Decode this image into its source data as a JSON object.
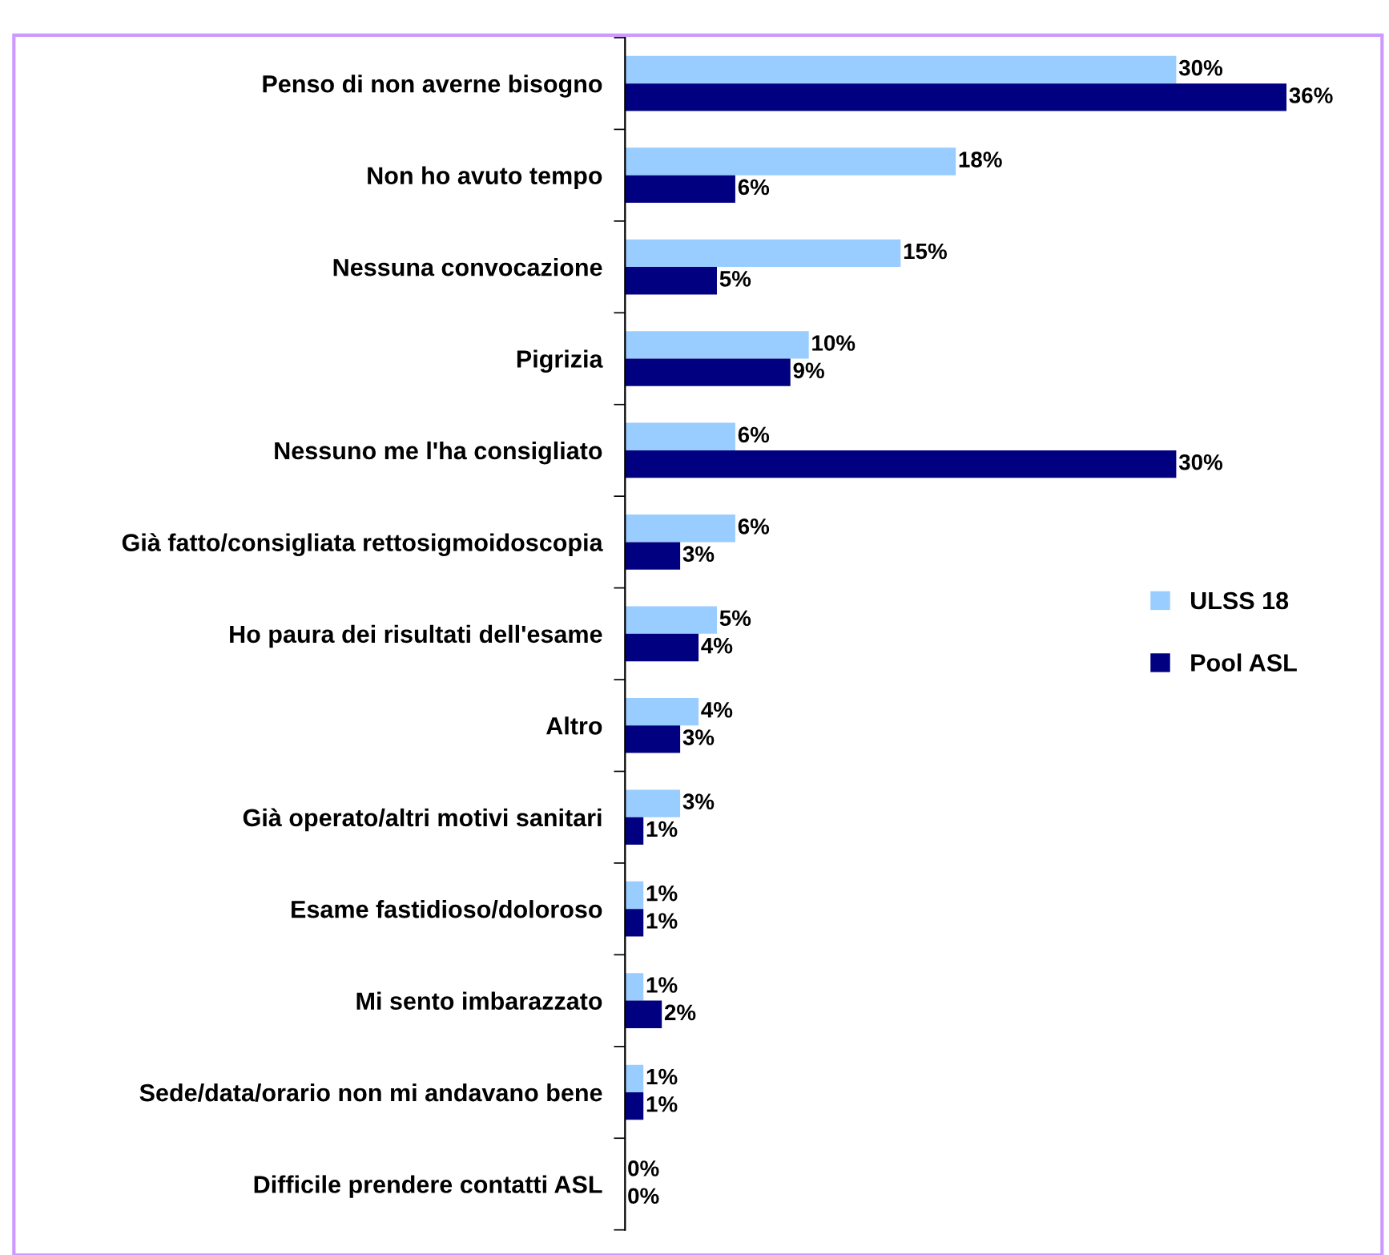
{
  "chart_data": {
    "type": "bar",
    "orientation": "horizontal",
    "categories": [
      "Penso di non averne bisogno",
      "Non ho avuto tempo",
      "Nessuna convocazione",
      "Pigrizia",
      "Nessuno me l'ha consigliato",
      "Già fatto/consigliata rettosigmoidoscopia",
      "Ho paura dei risultati dell'esame",
      "Altro",
      "Già operato/altri motivi sanitari",
      "Esame fastidioso/doloroso",
      "Mi sento imbarazzato",
      "Sede/data/orario non mi andavano bene",
      "Difficile prendere contatti ASL"
    ],
    "series": [
      {
        "name": "ULSS 18",
        "color": "#99ccff",
        "values": [
          30,
          18,
          15,
          10,
          6,
          6,
          5,
          4,
          3,
          1,
          1,
          1,
          0
        ],
        "value_labels": [
          "30%",
          "18%",
          "15%",
          "10%",
          "6%",
          "6%",
          "5%",
          "4%",
          "3%",
          "1%",
          "1%",
          "1%",
          "0%"
        ]
      },
      {
        "name": "Pool ASL",
        "color": "#000080",
        "values": [
          36,
          6,
          5,
          9,
          30,
          3,
          4,
          3,
          1,
          1,
          2,
          1,
          0
        ],
        "value_labels": [
          "36%",
          "6%",
          "5%",
          "9%",
          "30%",
          "3%",
          "4%",
          "3%",
          "1%",
          "1%",
          "2%",
          "1%",
          "0%"
        ]
      }
    ],
    "grid": false,
    "legend": "right",
    "tick_labels": "y"
  }
}
